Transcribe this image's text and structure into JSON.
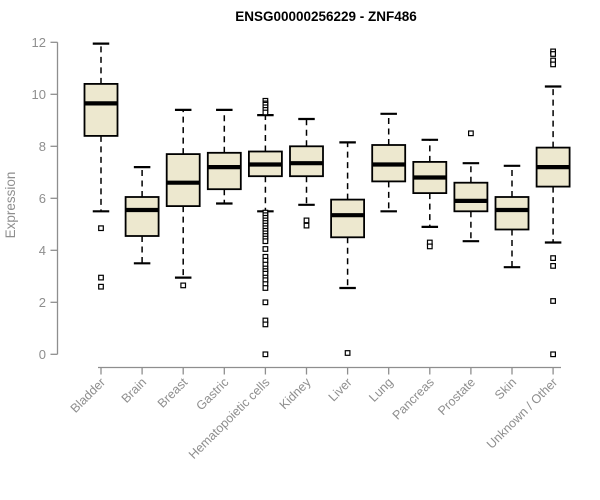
{
  "chart_data": {
    "type": "boxplot",
    "title": "ENSG00000256229 - ZNF486",
    "ylabel": "Expression",
    "xlabel": "",
    "ylim": [
      0,
      12
    ],
    "yticks": [
      0,
      2,
      4,
      6,
      8,
      10,
      12
    ],
    "grid": false,
    "legend": "none",
    "colors": {
      "box_fill": "#EDE8CF",
      "box_border": "#000000",
      "median": "#000000",
      "axis": "#8e8e8e",
      "tick_text": "#8e8e8e",
      "title_text": "#000000",
      "outlier_fill": "#ffffff"
    },
    "categories": [
      "Bladder",
      "Brain",
      "Breast",
      "Gastric",
      "Hematopoietic cells",
      "Kidney",
      "Liver",
      "Lung",
      "Pancreas",
      "Prostate",
      "Skin",
      "Unknown / Other"
    ],
    "boxes": [
      {
        "category": "Bladder",
        "whisker_low": 5.5,
        "q1": 8.4,
        "median": 9.65,
        "q3": 10.4,
        "whisker_high": 11.95,
        "outliers": [
          4.85,
          2.95,
          2.6
        ]
      },
      {
        "category": "Brain",
        "whisker_low": 3.5,
        "q1": 4.55,
        "median": 5.55,
        "q3": 6.05,
        "whisker_high": 7.2,
        "outliers": []
      },
      {
        "category": "Breast",
        "whisker_low": 2.95,
        "q1": 5.7,
        "median": 6.6,
        "q3": 7.7,
        "whisker_high": 9.4,
        "outliers": [
          2.65
        ]
      },
      {
        "category": "Gastric",
        "whisker_low": 5.8,
        "q1": 6.35,
        "median": 7.2,
        "q3": 7.75,
        "whisker_high": 9.4,
        "outliers": []
      },
      {
        "category": "Hematopoietic cells",
        "whisker_low": 5.5,
        "q1": 6.85,
        "median": 7.3,
        "q3": 7.8,
        "whisker_high": 9.2,
        "outliers": [
          9.75,
          9.65,
          9.6,
          9.5,
          9.4,
          9.3,
          5.45,
          5.35,
          5.25,
          5.15,
          5.05,
          4.95,
          4.85,
          4.75,
          4.65,
          4.55,
          4.45,
          4.35,
          4.05,
          3.75,
          3.6,
          3.45,
          3.3,
          3.2,
          3.1,
          2.95,
          2.85,
          2.7,
          2.55,
          2.0,
          1.3,
          1.15,
          0.0
        ]
      },
      {
        "category": "Kidney",
        "whisker_low": 5.75,
        "q1": 6.85,
        "median": 7.35,
        "q3": 8.0,
        "whisker_high": 9.05,
        "outliers": [
          5.15,
          4.95
        ]
      },
      {
        "category": "Liver",
        "whisker_low": 2.55,
        "q1": 4.5,
        "median": 5.35,
        "q3": 5.95,
        "whisker_high": 8.15,
        "outliers": [
          0.05
        ]
      },
      {
        "category": "Lung",
        "whisker_low": 5.5,
        "q1": 6.65,
        "median": 7.3,
        "q3": 8.05,
        "whisker_high": 9.25,
        "outliers": []
      },
      {
        "category": "Pancreas",
        "whisker_low": 4.9,
        "q1": 6.2,
        "median": 6.8,
        "q3": 7.4,
        "whisker_high": 8.25,
        "outliers": [
          4.3,
          4.15
        ]
      },
      {
        "category": "Prostate",
        "whisker_low": 4.35,
        "q1": 5.5,
        "median": 5.9,
        "q3": 6.6,
        "whisker_high": 7.35,
        "outliers": [
          8.5
        ]
      },
      {
        "category": "Skin",
        "whisker_low": 3.35,
        "q1": 4.8,
        "median": 5.55,
        "q3": 6.05,
        "whisker_high": 7.25,
        "outliers": []
      },
      {
        "category": "Unknown / Other",
        "whisker_low": 4.3,
        "q1": 6.45,
        "median": 7.2,
        "q3": 7.95,
        "whisker_high": 10.3,
        "outliers": [
          11.65,
          11.55,
          11.3,
          11.15,
          3.7,
          3.4,
          2.05,
          0.0
        ]
      }
    ]
  }
}
